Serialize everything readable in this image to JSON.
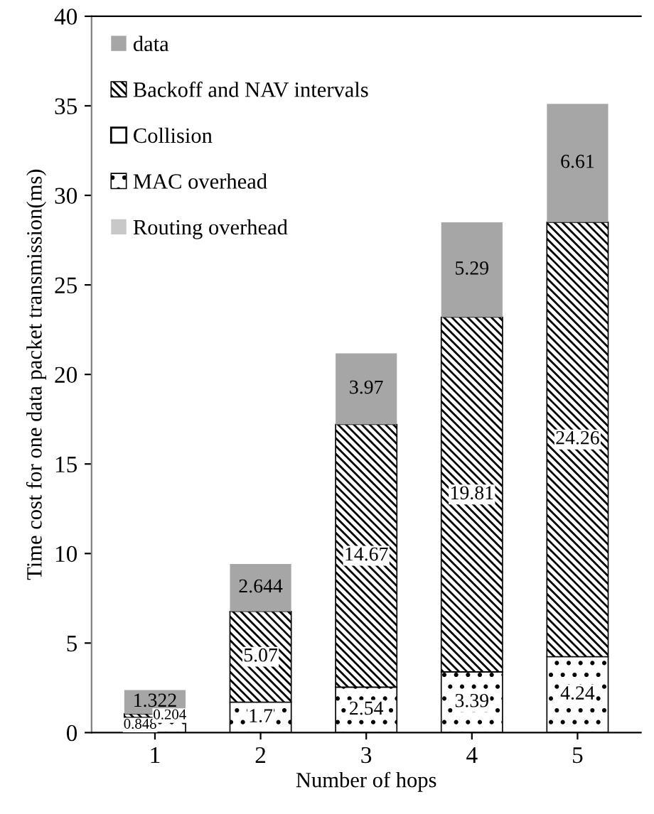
{
  "chart_data": {
    "type": "bar",
    "stacked": true,
    "xlabel": "Number of hops",
    "ylabel": "Time cost for one data packet transmission(ms)",
    "categories": [
      "1",
      "2",
      "3",
      "4",
      "5"
    ],
    "series": [
      {
        "name": "Routing overhead",
        "color": "#c8c8c8",
        "values": [
          null,
          null,
          null,
          null,
          null
        ]
      },
      {
        "name": "MAC overhead",
        "color": "#000000",
        "values": [
          0.848,
          1.7,
          2.54,
          3.39,
          4.24
        ]
      },
      {
        "name": "Collision",
        "color": "#000000",
        "values": [
          null,
          null,
          null,
          null,
          null
        ]
      },
      {
        "name": "Backoff and NAV intervals",
        "color": "#000000",
        "values": [
          0.204,
          5.07,
          14.67,
          19.81,
          24.26
        ]
      },
      {
        "name": "data",
        "color": "#a6a6a6",
        "values": [
          1.322,
          2.644,
          3.97,
          5.29,
          6.61
        ]
      }
    ],
    "ylim": [
      0,
      40
    ],
    "yticks": [
      0,
      5,
      10,
      15,
      20,
      25,
      30,
      35,
      40
    ],
    "grid": false,
    "legend": "top left",
    "data_labels": true
  }
}
